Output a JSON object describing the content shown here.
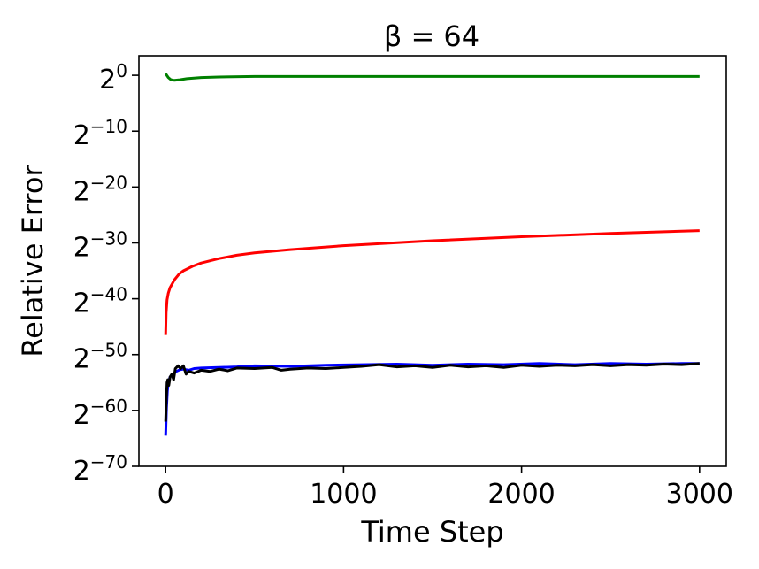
{
  "chart_data": {
    "type": "line",
    "title": "β = 64",
    "xlabel": "Time Step",
    "ylabel": "Relative Error",
    "xlim": [
      -150,
      3150
    ],
    "ylim": [
      -70,
      3.5
    ],
    "yscale": "log2",
    "x_ticks": [
      0,
      1000,
      2000,
      3000
    ],
    "x_tick_labels": [
      "0",
      "1000",
      "2000",
      "3000"
    ],
    "y_ticks": [
      0,
      -10,
      -20,
      -30,
      -40,
      -50,
      -60,
      -70
    ],
    "y_tick_labels": [
      {
        "base": "2",
        "exp": "0"
      },
      {
        "base": "2",
        "exp": "−10"
      },
      {
        "base": "2",
        "exp": "−20"
      },
      {
        "base": "2",
        "exp": "−30"
      },
      {
        "base": "2",
        "exp": "−40"
      },
      {
        "base": "2",
        "exp": "−50"
      },
      {
        "base": "2",
        "exp": "−60"
      },
      {
        "base": "2",
        "exp": "−70"
      }
    ],
    "grid": false,
    "series": [
      {
        "color": "#008000",
        "x": [
          0,
          15,
          30,
          50,
          80,
          120,
          200,
          300,
          500,
          1000,
          2000,
          3000
        ],
        "y": [
          0.3,
          -0.4,
          -0.8,
          -0.9,
          -0.8,
          -0.6,
          -0.4,
          -0.3,
          -0.2,
          -0.2,
          -0.2,
          -0.2
        ]
      },
      {
        "color": "#ff0000",
        "x": [
          0,
          3,
          8,
          15,
          25,
          50,
          75,
          100,
          150,
          200,
          300,
          400,
          500,
          700,
          1000,
          1500,
          2000,
          2500,
          3000
        ],
        "y": [
          -46.5,
          -42.5,
          -40.2,
          -39.0,
          -38.0,
          -36.6,
          -35.6,
          -35.0,
          -34.2,
          -33.6,
          -32.8,
          -32.2,
          -31.8,
          -31.2,
          -30.5,
          -29.6,
          -28.9,
          -28.3,
          -27.8
        ]
      },
      {
        "color": "#0000ff",
        "x": [
          0,
          5,
          10,
          15,
          25,
          40,
          60,
          80,
          100,
          130,
          160,
          200,
          300,
          400,
          500,
          700,
          900,
          1100,
          1300,
          1500,
          1700,
          1900,
          2100,
          2300,
          2500,
          2700,
          2900,
          3000
        ],
        "y": [
          -64.5,
          -59.5,
          -56.5,
          -55.0,
          -54.0,
          -53.5,
          -53.0,
          -52.7,
          -52.6,
          -52.8,
          -52.5,
          -52.4,
          -52.3,
          -52.2,
          -52.0,
          -52.1,
          -51.9,
          -51.8,
          -51.7,
          -51.9,
          -51.7,
          -51.8,
          -51.6,
          -51.8,
          -51.6,
          -51.7,
          -51.6,
          -51.6
        ]
      },
      {
        "color": "#000000",
        "x": [
          0,
          4,
          8,
          12,
          18,
          25,
          35,
          45,
          55,
          70,
          85,
          100,
          115,
          130,
          160,
          200,
          250,
          300,
          350,
          400,
          500,
          600,
          650,
          700,
          800,
          900,
          1000,
          1100,
          1200,
          1300,
          1400,
          1500,
          1600,
          1700,
          1800,
          1900,
          2000,
          2100,
          2200,
          2300,
          2400,
          2500,
          2600,
          2700,
          2800,
          2900,
          3000
        ],
        "y": [
          -62.0,
          -58.0,
          -55.0,
          -54.5,
          -55.5,
          -54.0,
          -53.5,
          -54.5,
          -52.5,
          -52.0,
          -52.5,
          -52.0,
          -53.5,
          -53.0,
          -53.3,
          -52.8,
          -53.0,
          -52.6,
          -52.9,
          -52.4,
          -52.5,
          -52.3,
          -52.8,
          -52.6,
          -52.4,
          -52.5,
          -52.3,
          -52.1,
          -51.8,
          -52.2,
          -52.0,
          -52.3,
          -51.9,
          -52.2,
          -52.0,
          -52.3,
          -51.9,
          -52.1,
          -51.9,
          -52.0,
          -51.8,
          -52.0,
          -51.8,
          -51.9,
          -51.7,
          -51.8,
          -51.6
        ]
      }
    ]
  }
}
